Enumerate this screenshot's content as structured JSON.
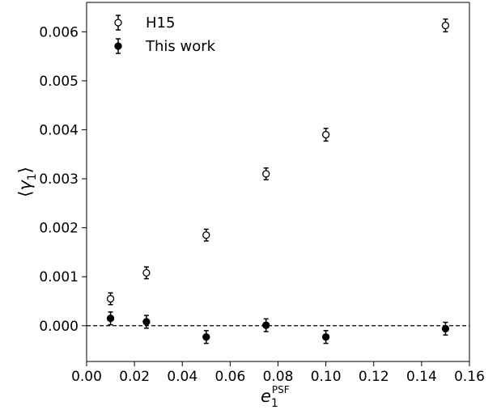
{
  "chart_data": {
    "type": "scatter",
    "title": "",
    "xlabel": {
      "base": "e",
      "sub": "1",
      "sup": "PSF"
    },
    "ylabel": {
      "left": "⟨",
      "symbol": "γ",
      "sub": "1",
      "right": "⟩"
    },
    "xlim": [
      0.0,
      0.16
    ],
    "ylim": [
      -0.00073,
      0.0066
    ],
    "x_ticks": [
      "0.00",
      "0.02",
      "0.04",
      "0.06",
      "0.08",
      "0.10",
      "0.12",
      "0.14",
      "0.16"
    ],
    "x_tick_values": [
      0.0,
      0.02,
      0.04,
      0.06,
      0.08,
      0.1,
      0.12,
      0.14,
      0.16
    ],
    "y_ticks": [
      "0.000",
      "0.001",
      "0.002",
      "0.003",
      "0.004",
      "0.005",
      "0.006"
    ],
    "y_tick_values": [
      0.0,
      0.001,
      0.002,
      0.003,
      0.004,
      0.005,
      0.006
    ],
    "grid": false,
    "legend_position": "top-left",
    "reference_line": {
      "y": 0.0,
      "style": "dashed"
    },
    "series": [
      {
        "name": "H15",
        "marker": "open-circle",
        "x": [
          0.01,
          0.025,
          0.05,
          0.075,
          0.1,
          0.15
        ],
        "y": [
          0.00055,
          0.00108,
          0.00185,
          0.0031,
          0.0039,
          0.00613
        ],
        "yerr": [
          0.00012,
          0.00012,
          0.00012,
          0.00012,
          0.00013,
          0.00013
        ]
      },
      {
        "name": "This work",
        "marker": "filled-circle",
        "x": [
          0.01,
          0.025,
          0.05,
          0.075,
          0.1,
          0.15
        ],
        "y": [
          0.00015,
          8e-05,
          -0.00023,
          1e-05,
          -0.00023,
          -6e-05
        ],
        "yerr": [
          0.00013,
          0.00013,
          0.00013,
          0.00013,
          0.00013,
          0.00013
        ]
      }
    ]
  }
}
